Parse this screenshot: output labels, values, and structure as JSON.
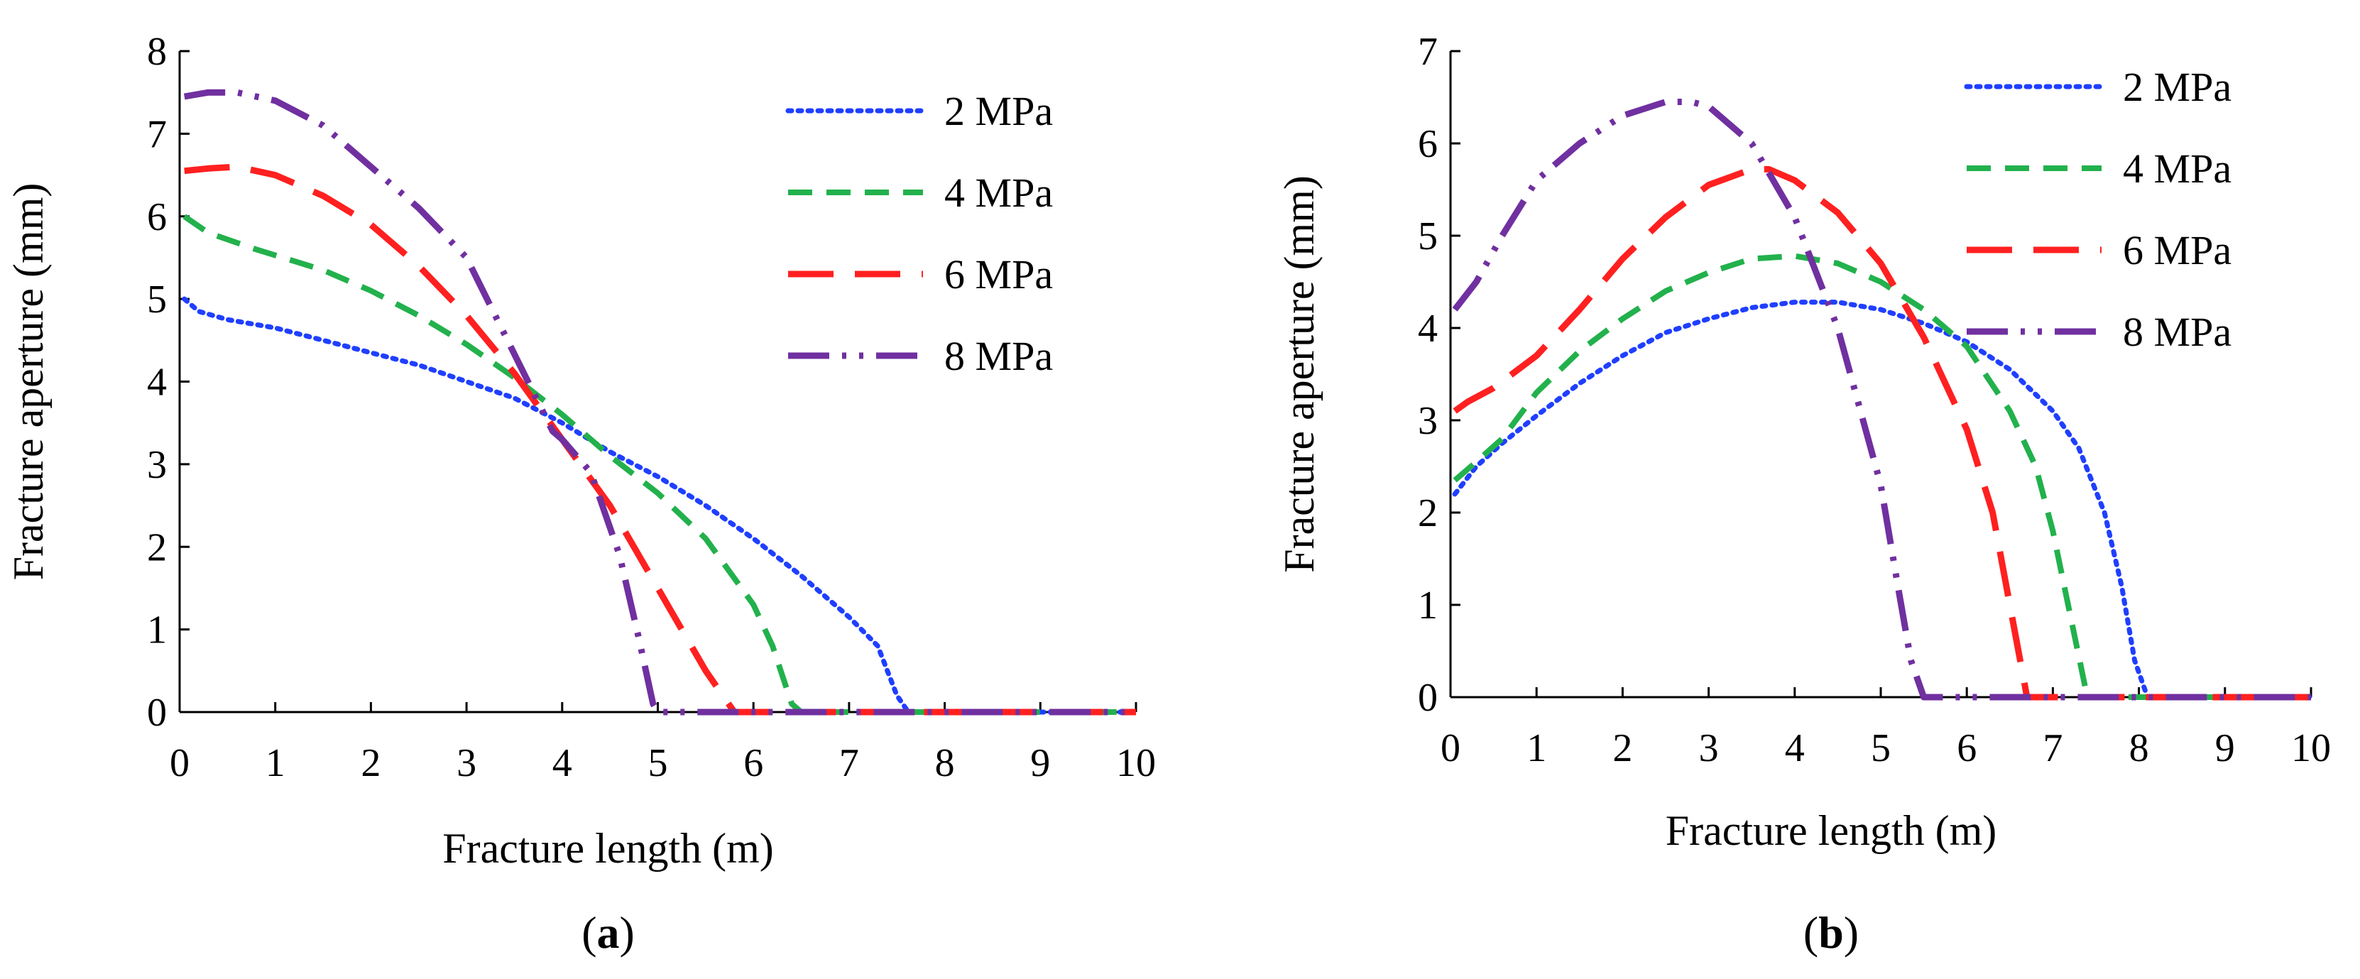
{
  "chart_data": [
    {
      "type": "line",
      "caption": "a",
      "title": "",
      "xlabel": "Fracture length (m)",
      "ylabel": "Fracture aperture (mm)",
      "xlim": [
        0,
        10
      ],
      "ylim": [
        0,
        8
      ],
      "xticks": [
        0,
        1,
        2,
        3,
        4,
        5,
        6,
        7,
        8,
        9,
        10
      ],
      "yticks": [
        0,
        1,
        2,
        3,
        4,
        5,
        6,
        7,
        8
      ],
      "legend_position": "top-right",
      "series": [
        {
          "name": "2 MPa",
          "color": "#1f3fff",
          "style": "dotted",
          "x": [
            0.05,
            0.2,
            0.5,
            1.0,
            1.5,
            2.0,
            2.5,
            3.0,
            3.5,
            4.0,
            4.5,
            5.0,
            5.5,
            6.0,
            6.5,
            7.0,
            7.3,
            7.5,
            7.62,
            8.0,
            9.0,
            10.0
          ],
          "y": [
            5.0,
            4.85,
            4.75,
            4.65,
            4.5,
            4.35,
            4.2,
            4.0,
            3.8,
            3.5,
            3.15,
            2.85,
            2.5,
            2.1,
            1.65,
            1.15,
            0.8,
            0.2,
            0,
            0,
            0,
            0
          ]
        },
        {
          "name": "4 MPa",
          "color": "#22b14c",
          "style": "dashed",
          "x": [
            0.05,
            0.3,
            0.8,
            1.5,
            2.0,
            2.5,
            3.0,
            3.5,
            4.0,
            4.5,
            5.0,
            5.5,
            6.0,
            6.2,
            6.4,
            6.5,
            7.0,
            8.0,
            9.0,
            10.0
          ],
          "y": [
            6.0,
            5.8,
            5.6,
            5.35,
            5.1,
            4.8,
            4.45,
            4.05,
            3.6,
            3.1,
            2.65,
            2.1,
            1.3,
            0.8,
            0.1,
            0,
            0,
            0,
            0,
            0
          ]
        },
        {
          "name": "6 MPa",
          "color": "#ff2020",
          "style": "long-dashed",
          "x": [
            0.05,
            0.3,
            0.6,
            1.0,
            1.5,
            2.0,
            2.5,
            3.0,
            3.5,
            4.0,
            4.5,
            5.0,
            5.5,
            5.8,
            6.0,
            7.0,
            8.0,
            9.0,
            10.0
          ],
          "y": [
            6.55,
            6.58,
            6.6,
            6.5,
            6.25,
            5.9,
            5.4,
            4.8,
            4.1,
            3.3,
            2.5,
            1.5,
            0.5,
            0,
            0,
            0,
            0,
            0,
            0
          ]
        },
        {
          "name": "8 MPa",
          "color": "#7030a0",
          "style": "dash-dot-dot",
          "x": [
            0.05,
            0.3,
            0.6,
            1.0,
            1.5,
            2.0,
            2.5,
            3.0,
            3.3,
            3.6,
            3.9,
            4.0,
            4.3,
            4.6,
            4.8,
            4.95,
            5.0,
            6.0,
            7.0,
            8.0,
            9.0,
            10.0
          ],
          "y": [
            7.45,
            7.5,
            7.5,
            7.4,
            7.1,
            6.6,
            6.1,
            5.5,
            4.8,
            4.1,
            3.4,
            3.3,
            2.9,
            1.9,
            0.9,
            0.1,
            0,
            0,
            0,
            0,
            0,
            0
          ]
        }
      ]
    },
    {
      "type": "line",
      "caption": "b",
      "title": "",
      "xlabel": "Fracture length (m)",
      "ylabel": "Fracture aperture (mm)",
      "xlim": [
        0,
        10
      ],
      "ylim": [
        0,
        7
      ],
      "xticks": [
        0,
        1,
        2,
        3,
        4,
        5,
        6,
        7,
        8,
        9,
        10
      ],
      "yticks": [
        0,
        1,
        2,
        3,
        4,
        5,
        6,
        7
      ],
      "legend_position": "top-right",
      "series": [
        {
          "name": "2 MPa",
          "color": "#1f3fff",
          "style": "dotted",
          "x": [
            0.05,
            0.3,
            0.6,
            1.0,
            1.5,
            2.0,
            2.5,
            3.0,
            3.5,
            4.0,
            4.5,
            5.0,
            5.5,
            6.0,
            6.5,
            7.0,
            7.3,
            7.6,
            7.8,
            7.95,
            8.1,
            9.0,
            10.0
          ],
          "y": [
            2.2,
            2.5,
            2.75,
            3.05,
            3.4,
            3.7,
            3.95,
            4.1,
            4.22,
            4.28,
            4.28,
            4.2,
            4.05,
            3.85,
            3.55,
            3.1,
            2.7,
            2.0,
            1.2,
            0.4,
            0,
            0,
            0
          ]
        },
        {
          "name": "4 MPa",
          "color": "#22b14c",
          "style": "dashed",
          "x": [
            0.05,
            0.3,
            0.6,
            1.0,
            1.5,
            2.0,
            2.5,
            3.0,
            3.5,
            4.0,
            4.5,
            5.0,
            5.5,
            6.0,
            6.5,
            6.8,
            7.0,
            7.2,
            7.4,
            8.0,
            9.0,
            10.0
          ],
          "y": [
            2.35,
            2.55,
            2.8,
            3.3,
            3.75,
            4.1,
            4.4,
            4.6,
            4.75,
            4.78,
            4.7,
            4.5,
            4.2,
            3.8,
            3.1,
            2.5,
            1.8,
            0.9,
            0,
            0,
            0,
            0
          ]
        },
        {
          "name": "6 MPa",
          "color": "#ff2020",
          "style": "long-dashed",
          "x": [
            0.05,
            0.2,
            0.5,
            1.0,
            1.5,
            2.0,
            2.5,
            3.0,
            3.5,
            3.7,
            4.0,
            4.5,
            5.0,
            5.5,
            6.0,
            6.3,
            6.5,
            6.7,
            7.0,
            8.0,
            9.0,
            10.0
          ],
          "y": [
            3.1,
            3.2,
            3.35,
            3.7,
            4.2,
            4.75,
            5.2,
            5.55,
            5.72,
            5.72,
            5.6,
            5.25,
            4.7,
            3.9,
            2.9,
            2.0,
            1.0,
            0,
            0,
            0,
            0,
            0
          ]
        },
        {
          "name": "8 MPa",
          "color": "#7030a0",
          "style": "dash-dot-dot",
          "x": [
            0.05,
            0.3,
            0.6,
            1.0,
            1.5,
            2.0,
            2.5,
            2.8,
            3.0,
            3.5,
            4.0,
            4.5,
            5.0,
            5.2,
            5.35,
            5.5,
            6.0,
            7.0,
            8.0,
            9.0,
            10.0
          ],
          "y": [
            4.2,
            4.5,
            5.0,
            5.6,
            6.0,
            6.3,
            6.45,
            6.45,
            6.4,
            6.0,
            5.2,
            4.0,
            2.3,
            1.2,
            0.4,
            0,
            0,
            0,
            0,
            0,
            0
          ]
        }
      ]
    }
  ]
}
